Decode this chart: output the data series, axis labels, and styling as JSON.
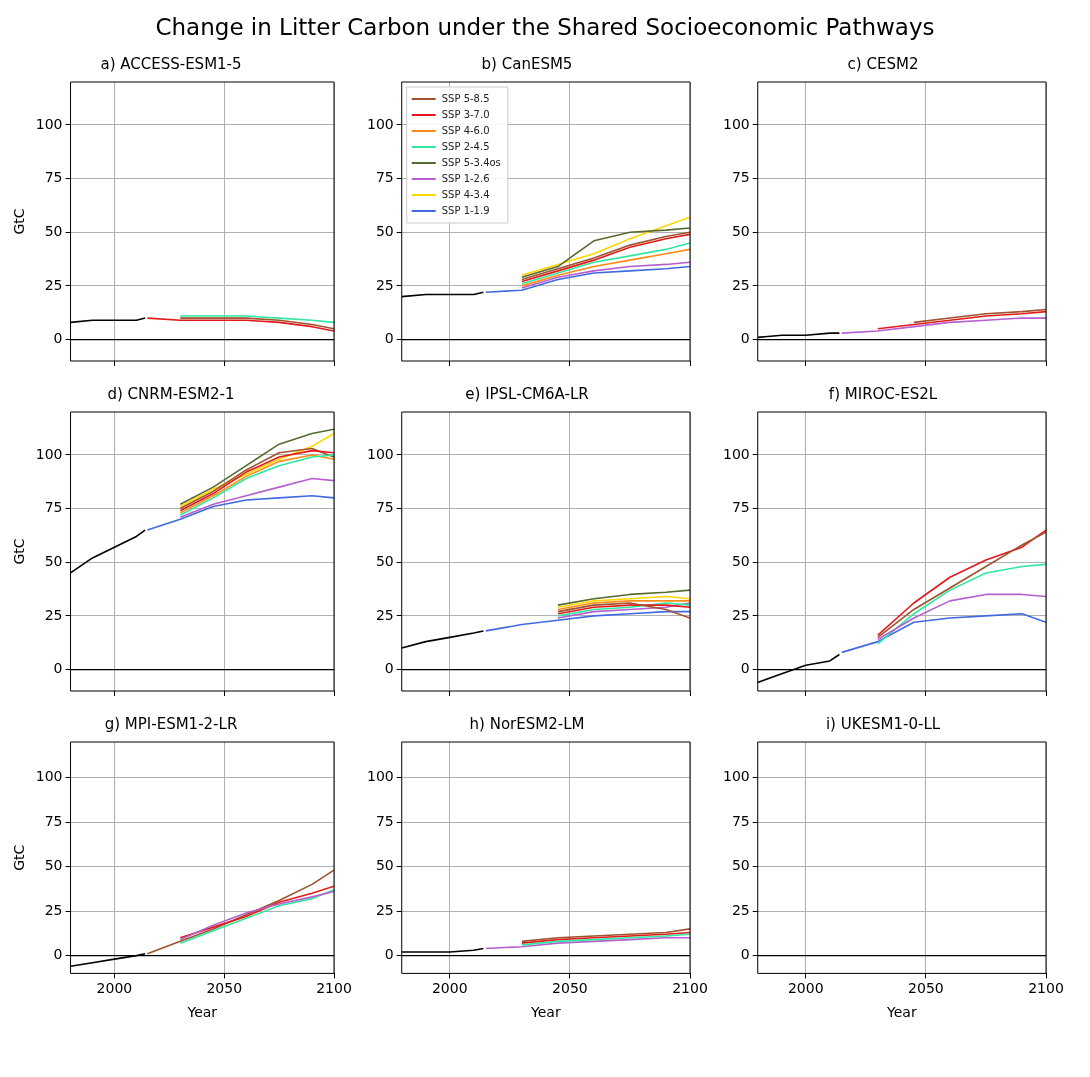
{
  "chart_data": [
    {
      "type": "other",
      "title": "Change in Litter Carbon under the Shared Socioeconomic Pathways"
    },
    {
      "type": "line",
      "title": "a) ACCESS-ESM1-5",
      "ylabel": "GtC",
      "xlim": [
        1980,
        2100
      ],
      "xticks": [
        2000,
        2050,
        2100
      ],
      "ylim": [
        -10,
        120
      ],
      "yticks": [
        0,
        25,
        50,
        75,
        100
      ],
      "grid": true,
      "tick_labels": "y",
      "ref_lines": [
        {
          "axis": "y",
          "value": 0,
          "color": "#000000"
        }
      ],
      "series": [
        {
          "color": "#000000",
          "x": [
            1980,
            1990,
            2000,
            2010,
            2014
          ],
          "values": [
            8,
            9,
            9,
            9,
            10
          ]
        },
        {
          "color": "#2ee8a0",
          "x": [
            2030,
            2045,
            2060,
            2075,
            2090,
            2100
          ],
          "values": [
            11,
            11,
            11,
            10,
            9,
            8
          ]
        },
        {
          "color": "#a0522d",
          "x": [
            2030,
            2045,
            2060,
            2075,
            2090,
            2100
          ],
          "values": [
            10,
            10,
            10,
            9,
            7,
            5
          ]
        },
        {
          "color": "#e31a1c",
          "x": [
            2015,
            2030,
            2045,
            2060,
            2075,
            2090,
            2100
          ],
          "values": [
            10,
            9,
            9,
            9,
            8,
            6,
            4
          ]
        }
      ]
    },
    {
      "type": "line",
      "title": "b) CanESM5",
      "xlim": [
        1980,
        2100
      ],
      "xticks": [
        2000,
        2050,
        2100
      ],
      "ylim": [
        -10,
        120
      ],
      "yticks": [
        0,
        25,
        50,
        75,
        100
      ],
      "grid": true,
      "legend": "top left",
      "tick_labels": "y",
      "ref_lines": [
        {
          "axis": "y",
          "value": 0,
          "color": "#000000"
        }
      ],
      "series": [
        {
          "color": "#000000",
          "x": [
            1980,
            1990,
            2000,
            2010,
            2014
          ],
          "values": [
            20,
            21,
            21,
            21,
            22
          ]
        },
        {
          "name": "SSP 5-8.5",
          "color": "#a0522d",
          "x": [
            2030,
            2045,
            2060,
            2075,
            2090,
            2100
          ],
          "values": [
            28,
            33,
            38,
            44,
            48,
            50
          ]
        },
        {
          "name": "SSP 3-7.0",
          "color": "#e31a1c",
          "x": [
            2030,
            2045,
            2060,
            2075,
            2090,
            2100
          ],
          "values": [
            27,
            32,
            37,
            43,
            47,
            49
          ]
        },
        {
          "name": "SSP 4-6.0",
          "color": "#ff8c1a",
          "x": [
            2030,
            2045,
            2060,
            2075,
            2090,
            2100
          ],
          "values": [
            25,
            30,
            34,
            37,
            40,
            42
          ]
        },
        {
          "name": "SSP 2-4.5",
          "color": "#2ee8a0",
          "x": [
            2030,
            2045,
            2060,
            2075,
            2090,
            2100
          ],
          "values": [
            26,
            31,
            36,
            39,
            42,
            45
          ]
        },
        {
          "name": "SSP 5-3.4os",
          "color": "#556b2f",
          "x": [
            2030,
            2045,
            2060,
            2075,
            2090,
            2100
          ],
          "values": [
            29,
            34,
            46,
            50,
            51,
            52
          ]
        },
        {
          "name": "SSP 1-2.6",
          "color": "#b65fcf",
          "x": [
            2030,
            2045,
            2060,
            2075,
            2090,
            2100
          ],
          "values": [
            24,
            29,
            32,
            34,
            35,
            36
          ]
        },
        {
          "name": "SSP 4-3.4",
          "color": "#ffd700",
          "x": [
            2030,
            2045,
            2060,
            2075,
            2090,
            2100
          ],
          "values": [
            30,
            35,
            40,
            47,
            53,
            57
          ]
        },
        {
          "name": "SSP 1-1.9",
          "color": "#4169e1",
          "x": [
            2015,
            2030,
            2045,
            2060,
            2075,
            2090,
            2100
          ],
          "values": [
            22,
            23,
            28,
            31,
            32,
            33,
            34
          ]
        }
      ]
    },
    {
      "type": "line",
      "title": "c) CESM2",
      "xlim": [
        1980,
        2100
      ],
      "xticks": [
        2000,
        2050,
        2100
      ],
      "ylim": [
        -10,
        120
      ],
      "yticks": [
        0,
        25,
        50,
        75,
        100
      ],
      "grid": true,
      "tick_labels": "y",
      "ref_lines": [
        {
          "axis": "y",
          "value": 0,
          "color": "#000000"
        }
      ],
      "series": [
        {
          "color": "#000000",
          "x": [
            1980,
            1990,
            2000,
            2010,
            2014
          ],
          "values": [
            1,
            2,
            2,
            3,
            3
          ]
        },
        {
          "color": "#a0522d",
          "x": [
            2045,
            2060,
            2075,
            2090,
            2100
          ],
          "values": [
            8,
            10,
            12,
            13,
            14
          ]
        },
        {
          "color": "#e31a1c",
          "x": [
            2030,
            2045,
            2060,
            2075,
            2090,
            2100
          ],
          "values": [
            5,
            7,
            9,
            11,
            12,
            13
          ]
        },
        {
          "color": "#b65fcf",
          "x": [
            2015,
            2030,
            2045,
            2060,
            2075,
            2090,
            2100
          ],
          "values": [
            3,
            4,
            6,
            8,
            9,
            10,
            10
          ]
        }
      ]
    },
    {
      "type": "line",
      "title": "d) CNRM-ESM2-1",
      "ylabel": "GtC",
      "xlim": [
        1980,
        2100
      ],
      "xticks": [
        2000,
        2050,
        2100
      ],
      "ylim": [
        -10,
        120
      ],
      "yticks": [
        0,
        25,
        50,
        75,
        100
      ],
      "grid": true,
      "tick_labels": "y",
      "ref_lines": [
        {
          "axis": "y",
          "value": 0,
          "color": "#000000"
        }
      ],
      "series": [
        {
          "color": "#000000",
          "x": [
            1980,
            1990,
            2000,
            2010,
            2014
          ],
          "values": [
            45,
            52,
            57,
            62,
            65
          ]
        },
        {
          "color": "#b65fcf",
          "x": [
            2030,
            2045,
            2060,
            2075,
            2090,
            2100
          ],
          "values": [
            71,
            77,
            81,
            85,
            89,
            88
          ]
        },
        {
          "color": "#2ee8a0",
          "x": [
            2030,
            2045,
            2060,
            2075,
            2090,
            2100
          ],
          "values": [
            72,
            80,
            89,
            95,
            99,
            100
          ]
        },
        {
          "color": "#ff8c1a",
          "x": [
            2030,
            2045,
            2060,
            2075,
            2090,
            2100
          ],
          "values": [
            73,
            81,
            90,
            97,
            100,
            98
          ]
        },
        {
          "color": "#e31a1c",
          "x": [
            2030,
            2045,
            2060,
            2075,
            2090,
            2100
          ],
          "values": [
            74,
            82,
            92,
            99,
            102,
            101
          ]
        },
        {
          "color": "#a0522d",
          "x": [
            2030,
            2045,
            2060,
            2075,
            2090,
            2100
          ],
          "values": [
            75,
            83,
            93,
            101,
            103,
            99
          ]
        },
        {
          "color": "#ffd700",
          "x": [
            2030,
            2045,
            2060,
            2075,
            2090,
            2100
          ],
          "values": [
            76,
            84,
            91,
            98,
            104,
            110
          ]
        },
        {
          "color": "#556b2f",
          "x": [
            2030,
            2045,
            2060,
            2075,
            2090,
            2100
          ],
          "values": [
            77,
            85,
            95,
            105,
            110,
            112
          ]
        },
        {
          "color": "#4169e1",
          "x": [
            2015,
            2030,
            2045,
            2060,
            2075,
            2090,
            2100
          ],
          "values": [
            65,
            70,
            76,
            79,
            80,
            81,
            80
          ]
        }
      ]
    },
    {
      "type": "line",
      "title": "e) IPSL-CM6A-LR",
      "xlim": [
        1980,
        2100
      ],
      "xticks": [
        2000,
        2050,
        2100
      ],
      "ylim": [
        -10,
        120
      ],
      "yticks": [
        0,
        25,
        50,
        75,
        100
      ],
      "grid": true,
      "tick_labels": "y",
      "ref_lines": [
        {
          "axis": "y",
          "value": 0,
          "color": "#000000"
        }
      ],
      "series": [
        {
          "color": "#000000",
          "x": [
            1980,
            1990,
            2000,
            2010,
            2014
          ],
          "values": [
            10,
            13,
            15,
            17,
            18
          ]
        },
        {
          "color": "#a0522d",
          "x": [
            2045,
            2060,
            2075,
            2090,
            2100
          ],
          "values": [
            27,
            30,
            31,
            28,
            24
          ]
        },
        {
          "color": "#e31a1c",
          "x": [
            2045,
            2060,
            2075,
            2090,
            2100
          ],
          "values": [
            26,
            29,
            30,
            30,
            29
          ]
        },
        {
          "color": "#ff8c1a",
          "x": [
            2045,
            2060,
            2075,
            2090,
            2100
          ],
          "values": [
            28,
            31,
            32,
            32,
            32
          ]
        },
        {
          "color": "#ffd700",
          "x": [
            2045,
            2060,
            2075,
            2090,
            2100
          ],
          "values": [
            29,
            32,
            33,
            34,
            33
          ]
        },
        {
          "color": "#2ee8a0",
          "x": [
            2045,
            2060,
            2075,
            2090,
            2100
          ],
          "values": [
            25,
            28,
            29,
            31,
            30
          ]
        },
        {
          "color": "#b65fcf",
          "x": [
            2045,
            2060,
            2075,
            2090,
            2100
          ],
          "values": [
            24,
            27,
            28,
            29,
            31
          ]
        },
        {
          "color": "#556b2f",
          "x": [
            2045,
            2060,
            2075,
            2090,
            2100
          ],
          "values": [
            30,
            33,
            35,
            36,
            37
          ]
        },
        {
          "color": "#4169e1",
          "x": [
            2015,
            2030,
            2045,
            2060,
            2075,
            2090,
            2100
          ],
          "values": [
            18,
            21,
            23,
            25,
            26,
            27,
            27
          ]
        }
      ]
    },
    {
      "type": "line",
      "title": "f) MIROC-ES2L",
      "xlim": [
        1980,
        2100
      ],
      "xticks": [
        2000,
        2050,
        2100
      ],
      "ylim": [
        -10,
        120
      ],
      "yticks": [
        0,
        25,
        50,
        75,
        100
      ],
      "grid": true,
      "tick_labels": "y",
      "ref_lines": [
        {
          "axis": "y",
          "value": 0,
          "color": "#000000"
        }
      ],
      "series": [
        {
          "color": "#000000",
          "x": [
            1980,
            1990,
            2000,
            2010,
            2014
          ],
          "values": [
            -6,
            -2,
            2,
            4,
            7
          ]
        },
        {
          "color": "#b65fcf",
          "x": [
            2030,
            2045,
            2060,
            2075,
            2090,
            2100
          ],
          "values": [
            14,
            24,
            32,
            35,
            35,
            34
          ]
        },
        {
          "color": "#2ee8a0",
          "x": [
            2030,
            2045,
            2060,
            2075,
            2090,
            2100
          ],
          "values": [
            12,
            26,
            37,
            45,
            48,
            49
          ]
        },
        {
          "color": "#a0522d",
          "x": [
            2030,
            2045,
            2060,
            2075,
            2090,
            2100
          ],
          "values": [
            15,
            28,
            38,
            48,
            58,
            64
          ]
        },
        {
          "color": "#e31a1c",
          "x": [
            2030,
            2045,
            2060,
            2075,
            2090,
            2100
          ],
          "values": [
            16,
            31,
            43,
            51,
            57,
            65
          ]
        },
        {
          "color": "#4169e1",
          "x": [
            2015,
            2030,
            2045,
            2060,
            2075,
            2090,
            2100
          ],
          "values": [
            8,
            13,
            22,
            24,
            25,
            26,
            22
          ]
        }
      ]
    },
    {
      "type": "line",
      "title": "g) MPI-ESM1-2-LR",
      "xlabel": "Year",
      "ylabel": "GtC",
      "xlim": [
        1980,
        2100
      ],
      "xticks": [
        2000,
        2050,
        2100
      ],
      "ylim": [
        -10,
        120
      ],
      "yticks": [
        0,
        25,
        50,
        75,
        100
      ],
      "grid": true,
      "ref_lines": [
        {
          "axis": "y",
          "value": 0,
          "color": "#000000"
        }
      ],
      "series": [
        {
          "color": "#000000",
          "x": [
            1980,
            1990,
            2000,
            2010,
            2014
          ],
          "values": [
            -6,
            -4,
            -2,
            0,
            1
          ]
        },
        {
          "color": "#b65fcf",
          "x": [
            2030,
            2045,
            2060,
            2075,
            2090,
            2100
          ],
          "values": [
            9,
            17,
            24,
            29,
            33,
            36
          ]
        },
        {
          "color": "#2ee8a0",
          "x": [
            2030,
            2045,
            2060,
            2075,
            2090,
            2100
          ],
          "values": [
            7,
            14,
            21,
            28,
            32,
            37
          ]
        },
        {
          "color": "#e31a1c",
          "x": [
            2030,
            2045,
            2060,
            2075,
            2090,
            2100
          ],
          "values": [
            10,
            16,
            22,
            30,
            35,
            39
          ]
        },
        {
          "color": "#a0522d",
          "x": [
            2015,
            2030,
            2045,
            2060,
            2075,
            2090,
            2100
          ],
          "values": [
            1,
            8,
            15,
            23,
            31,
            40,
            48
          ]
        }
      ]
    },
    {
      "type": "line",
      "title": "h) NorESM2-LM",
      "xlabel": "Year",
      "xlim": [
        1980,
        2100
      ],
      "xticks": [
        2000,
        2050,
        2100
      ],
      "ylim": [
        -10,
        120
      ],
      "yticks": [
        0,
        25,
        50,
        75,
        100
      ],
      "grid": true,
      "ref_lines": [
        {
          "axis": "y",
          "value": 0,
          "color": "#000000"
        }
      ],
      "series": [
        {
          "color": "#000000",
          "x": [
            1980,
            1990,
            2000,
            2010,
            2014
          ],
          "values": [
            2,
            2,
            2,
            3,
            4
          ]
        },
        {
          "color": "#2ee8a0",
          "x": [
            2030,
            2045,
            2060,
            2075,
            2090,
            2100
          ],
          "values": [
            6,
            8,
            9,
            10,
            11,
            12
          ]
        },
        {
          "color": "#e31a1c",
          "x": [
            2030,
            2045,
            2060,
            2075,
            2090,
            2100
          ],
          "values": [
            7,
            9,
            10,
            11,
            12,
            13
          ]
        },
        {
          "color": "#a0522d",
          "x": [
            2030,
            2045,
            2060,
            2075,
            2090,
            2100
          ],
          "values": [
            8,
            10,
            11,
            12,
            13,
            15
          ]
        },
        {
          "color": "#b65fcf",
          "x": [
            2015,
            2030,
            2045,
            2060,
            2075,
            2090,
            2100
          ],
          "values": [
            4,
            5,
            7,
            8,
            9,
            10,
            10
          ]
        }
      ]
    },
    {
      "type": "line",
      "title": "i) UKESM1-0-LL",
      "xlabel": "Year",
      "xlim": [
        1980,
        2100
      ],
      "xticks": [
        2000,
        2050,
        2100
      ],
      "ylim": [
        -10,
        120
      ],
      "yticks": [
        0,
        25,
        50,
        75,
        100
      ],
      "grid": true,
      "ref_lines": [
        {
          "axis": "y",
          "value": 0,
          "color": "#000000"
        }
      ]
    }
  ]
}
